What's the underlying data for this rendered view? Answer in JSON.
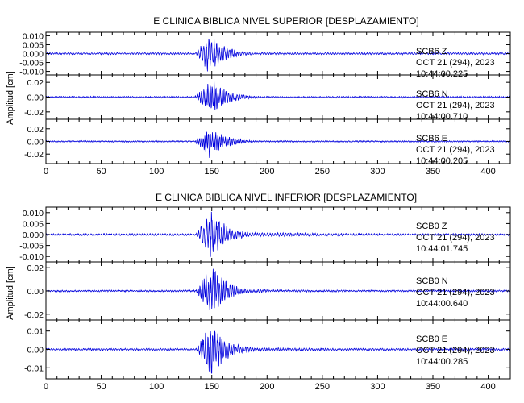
{
  "chart_data": [
    {
      "type": "line",
      "title": "E CLINICA BIBLICA NIVEL SUPERIOR [DESPLAZAMIENTO]",
      "ylabel": "Amplitud [cm]",
      "xlim": [
        0,
        420
      ],
      "x_ticks": [
        0,
        50,
        100,
        150,
        200,
        250,
        300,
        350,
        400
      ],
      "grid": false,
      "series": [
        {
          "name": "SCB6 Z",
          "station": "SCB6",
          "component": "Z",
          "date": "OCT 21 (294), 2023",
          "time": "10:44:00.225",
          "ylim": [
            -0.012,
            0.012
          ],
          "y_ticks": [
            -0.01,
            -0.005,
            0.0,
            0.005,
            0.01
          ],
          "y_tick_labels": [
            "-0.010",
            "-0.005",
            "0.000",
            "0.005",
            "0.010"
          ],
          "noise": 0.0006,
          "arrival": 135,
          "peak_time": 148,
          "peak_amplitude": 0.012,
          "coda_level": 0.0008,
          "dominant_period": 2.4
        },
        {
          "name": "SCB6 N",
          "station": "SCB6",
          "component": "N",
          "date": "OCT 21 (294), 2023",
          "time": "10:44:00.710",
          "ylim": [
            -0.03,
            0.03
          ],
          "y_ticks": [
            -0.02,
            0.0,
            0.02
          ],
          "y_tick_labels": [
            "-0.02",
            "0.00",
            "0.02"
          ],
          "noise": 0.0012,
          "arrival": 134,
          "peak_time": 150,
          "peak_amplitude": 0.026,
          "coda_level": 0.0015,
          "dominant_period": 2.0
        },
        {
          "name": "SCB6 E",
          "station": "SCB6",
          "component": "E",
          "date": "OCT 21 (294), 2023",
          "time": "10:44:00.205",
          "ylim": [
            -0.035,
            0.035
          ],
          "y_ticks": [
            -0.02,
            0.0,
            0.02
          ],
          "y_tick_labels": [
            "-0.02",
            "0.00",
            "0.02"
          ],
          "noise": 0.0012,
          "arrival": 134,
          "peak_time": 148,
          "peak_amplitude": 0.028,
          "coda_level": 0.0015,
          "dominant_period": 1.8
        }
      ]
    },
    {
      "type": "line",
      "title": "E CLINICA BIBLICA NIVEL INFERIOR [DESPLAZAMIENTO]",
      "ylabel": "Amplitud [cm]",
      "xlim": [
        0,
        420
      ],
      "x_ticks": [
        0,
        50,
        100,
        150,
        200,
        250,
        300,
        350,
        400
      ],
      "grid": false,
      "series": [
        {
          "name": "SCB0 Z",
          "station": "SCB0",
          "component": "Z",
          "date": "OCT 21 (294), 2023",
          "time": "10:44:01.745",
          "ylim": [
            -0.0125,
            0.0125
          ],
          "y_ticks": [
            -0.01,
            -0.005,
            0.0,
            0.005,
            0.01
          ],
          "y_tick_labels": [
            "-0.010",
            "-0.005",
            "0.000",
            "0.005",
            "0.010"
          ],
          "noise": 0.0005,
          "arrival": 135,
          "peak_time": 150,
          "peak_amplitude": 0.012,
          "coda_level": 0.0012,
          "dominant_period": 2.4
        },
        {
          "name": "SCB0 N",
          "station": "SCB0",
          "component": "N",
          "date": "OCT 21 (294), 2023",
          "time": "10:44:00.640",
          "ylim": [
            -0.025,
            0.025
          ],
          "y_ticks": [
            -0.02,
            0.0,
            0.02
          ],
          "y_tick_labels": [
            "-0.02",
            "0.00",
            "0.02"
          ],
          "noise": 0.0008,
          "arrival": 135,
          "peak_time": 150,
          "peak_amplitude": 0.022,
          "coda_level": 0.0016,
          "dominant_period": 2.0
        },
        {
          "name": "SCB0 E",
          "station": "SCB0",
          "component": "E",
          "date": "OCT 21 (294), 2023",
          "time": "10:44:00.285",
          "ylim": [
            -0.016,
            0.016
          ],
          "y_ticks": [
            -0.01,
            0.0,
            0.01
          ],
          "y_tick_labels": [
            "-0.01",
            "0.00",
            "0.01"
          ],
          "noise": 0.0006,
          "arrival": 135,
          "peak_time": 150,
          "peak_amplitude": 0.015,
          "coda_level": 0.0012,
          "dominant_period": 2.2
        }
      ]
    }
  ],
  "colors": {
    "trace": "#0000dd",
    "axis": "#000000",
    "background": "#ffffff"
  }
}
